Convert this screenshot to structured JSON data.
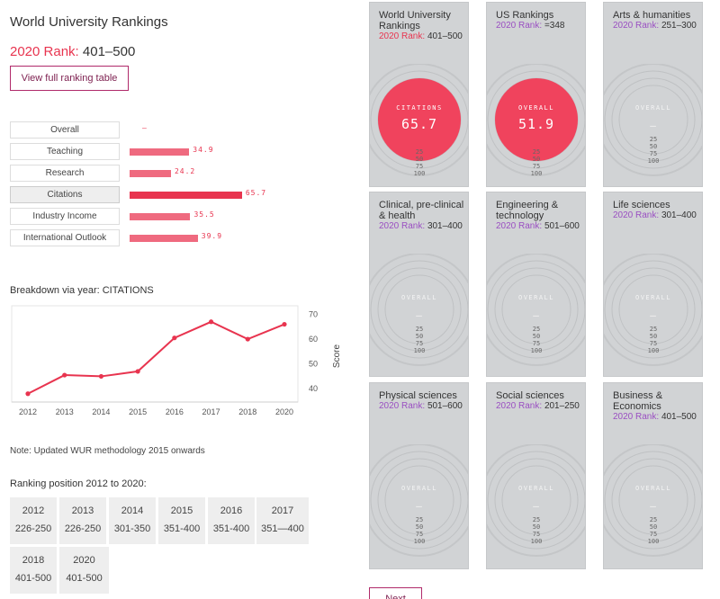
{
  "header": {
    "title": "World University Rankings",
    "rank_label": "2020 Rank:",
    "rank_value": "401–500",
    "button_label": "View full ranking table"
  },
  "metrics": [
    {
      "label": "Overall",
      "value": "–",
      "score": 0,
      "active": false
    },
    {
      "label": "Teaching",
      "value": "34.9",
      "score": 34.9,
      "active": false
    },
    {
      "label": "Research",
      "value": "24.2",
      "score": 24.2,
      "active": false
    },
    {
      "label": "Citations",
      "value": "65.7",
      "score": 65.7,
      "active": true
    },
    {
      "label": "Industry Income",
      "value": "35.5",
      "score": 35.5,
      "active": false
    },
    {
      "label": "International Outlook",
      "value": "39.9",
      "score": 39.9,
      "active": false
    }
  ],
  "breakdown_title": "Breakdown via year: CITATIONS",
  "chart_data": {
    "type": "line",
    "title": "Breakdown via year: CITATIONS",
    "x": [
      2012,
      2013,
      2014,
      2015,
      2016,
      2017,
      2018,
      2020
    ],
    "categories": [
      "2012",
      "2013",
      "2014",
      "2015",
      "2016",
      "2017",
      "2018",
      "2020"
    ],
    "series": [
      {
        "values": [
          38,
          45.5,
          45,
          47,
          60.5,
          67,
          60,
          66
        ]
      }
    ],
    "ylabel": "Score",
    "ylim": [
      35,
      72
    ],
    "yticks": [
      40,
      50,
      60,
      70
    ],
    "color": "#e8344f"
  },
  "note": "Note: Updated WUR methodology 2015 onwards",
  "positions_title": "Ranking position 2012 to 2020:",
  "positions": [
    {
      "year": "2012",
      "rank": "226-250"
    },
    {
      "year": "2013",
      "rank": "226-250"
    },
    {
      "year": "2014",
      "rank": "301-350"
    },
    {
      "year": "2015",
      "rank": "351-400"
    },
    {
      "year": "2016",
      "rank": "351-400"
    },
    {
      "year": "2017",
      "rank": "351—400"
    },
    {
      "year": "2018",
      "rank": "401-500"
    },
    {
      "year": "2020",
      "rank": "401-500"
    }
  ],
  "rank_prefix": "2020 Rank:",
  "cards": [
    {
      "name": "World University Rankings",
      "rank": "401–500",
      "rank_color": "#e8344f",
      "dial_label": "CITATIONS",
      "dial_value": "65.7",
      "filled": true
    },
    {
      "name": "US Rankings",
      "rank": "=348",
      "rank_color": "#9a4fc2",
      "dial_label": "OVERALL",
      "dial_value": "51.9",
      "filled": true
    },
    {
      "name": "Arts & humanities",
      "rank": "251–300",
      "rank_color": "#9a4fc2",
      "dial_label": "OVERALL",
      "dial_value": "—",
      "filled": false
    },
    {
      "name": "Clinical, pre-clinical & health",
      "rank": "301–400",
      "rank_color": "#9a4fc2",
      "dial_label": "OVERALL",
      "dial_value": "—",
      "filled": false
    },
    {
      "name": "Engineering & technology",
      "rank": "501–600",
      "rank_color": "#9a4fc2",
      "dial_label": "OVERALL",
      "dial_value": "—",
      "filled": false
    },
    {
      "name": "Life sciences",
      "rank": "301–400",
      "rank_color": "#9a4fc2",
      "dial_label": "OVERALL",
      "dial_value": "—",
      "filled": false
    },
    {
      "name": "Physical sciences",
      "rank": "501–600",
      "rank_color": "#9a4fc2",
      "dial_label": "OVERALL",
      "dial_value": "—",
      "filled": false
    },
    {
      "name": "Social sciences",
      "rank": "201–250",
      "rank_color": "#9a4fc2",
      "dial_label": "OVERALL",
      "dial_value": "—",
      "filled": false
    },
    {
      "name": "Business & Economics",
      "rank": "401–500",
      "rank_color": "#9a4fc2",
      "dial_label": "OVERALL",
      "dial_value": "—",
      "filled": false
    }
  ],
  "dial_ticks": [
    "25",
    "50",
    "75",
    "100"
  ],
  "next_label": "Next"
}
